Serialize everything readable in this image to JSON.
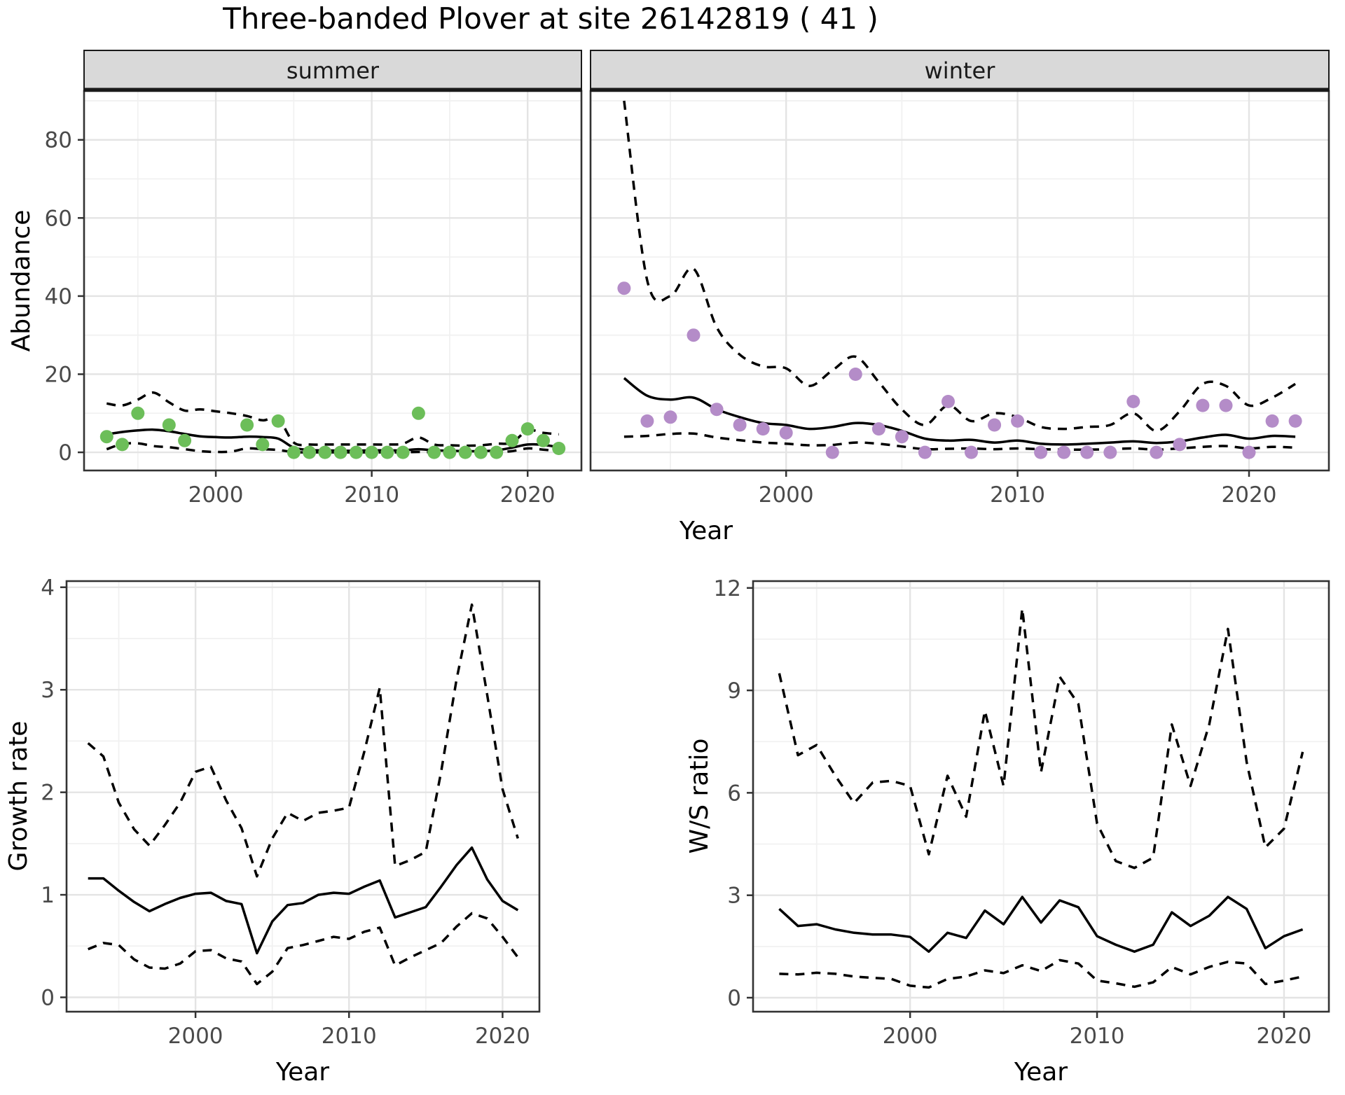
{
  "title": "Three-banded Plover at site 26142819 ( 41 )",
  "colors": {
    "summer_point": "#6cbe59",
    "winter_point": "#b48cc8",
    "line": "#000000",
    "panel_border": "#333333",
    "grid_major": "#e4e4e4",
    "grid_minor": "#f1f1f1",
    "strip_bg": "#d9d9d9",
    "strip_border": "#1a1a1a",
    "tick_text": "#4a4a4a",
    "axis_title": "#000000"
  },
  "chart_data": [
    {
      "type": "line",
      "facet_label": "summer",
      "xlabel": "Year",
      "ylabel": "Abundance",
      "smooth": true,
      "xlim": [
        1991.55,
        2023.45
      ],
      "ylim": [
        -4.65,
        92.5
      ],
      "x_ticks": [
        2000,
        2010,
        2020
      ],
      "x_minor": [
        1995,
        2005,
        2015
      ],
      "y_ticks": [
        0,
        20,
        40,
        60,
        80
      ],
      "y_minor": [
        10,
        30,
        50,
        70,
        90
      ],
      "years": [
        1993,
        1994,
        1995,
        1996,
        1997,
        1998,
        1999,
        2000,
        2001,
        2002,
        2003,
        2004,
        2005,
        2006,
        2007,
        2008,
        2009,
        2010,
        2011,
        2012,
        2013,
        2014,
        2015,
        2016,
        2017,
        2018,
        2019,
        2020,
        2021,
        2022
      ],
      "series": [
        {
          "name": "observed-counts",
          "style": "points",
          "color_key": "summer_point",
          "values": [
            4,
            2,
            10,
            null,
            7,
            3,
            null,
            null,
            null,
            7,
            2,
            8,
            0,
            0,
            0,
            0,
            0,
            0,
            0,
            0,
            10,
            0,
            0,
            0,
            0,
            0,
            3,
            6,
            3,
            1
          ]
        },
        {
          "name": "upper-ci",
          "style": "dashed",
          "values": [
            12.5,
            12.0,
            13.5,
            15.3,
            12.8,
            10.7,
            11.0,
            10.5,
            10.0,
            9.3,
            8.2,
            8.6,
            2.5,
            2.0,
            2.0,
            2.0,
            2.0,
            2.0,
            2.0,
            2.2,
            3.8,
            2.0,
            1.8,
            1.7,
            1.8,
            2.2,
            2.5,
            5.6,
            5.0,
            4.6
          ]
        },
        {
          "name": "lower-ci",
          "style": "dashed",
          "values": [
            0.8,
            2.1,
            2.3,
            1.6,
            1.3,
            0.8,
            0.3,
            0.1,
            0.2,
            1.0,
            0.8,
            0.6,
            0.05,
            0,
            0,
            0,
            0,
            0,
            0,
            0,
            0.1,
            0,
            0,
            0,
            0,
            0.05,
            0.3,
            1.0,
            0.7,
            0.3
          ]
        },
        {
          "name": "model-fit",
          "style": "solid",
          "values": [
            4.6,
            5.2,
            5.6,
            5.8,
            5.4,
            4.7,
            4.1,
            3.9,
            3.8,
            4.0,
            3.9,
            3.5,
            1.2,
            0.6,
            0.5,
            0.4,
            0.4,
            0.5,
            0.5,
            0.5,
            0.8,
            0.5,
            0.4,
            0.3,
            0.3,
            0.5,
            1.2,
            2.0,
            1.9,
            1.3
          ]
        }
      ]
    },
    {
      "type": "line",
      "facet_label": "winter",
      "xlabel": "Year",
      "ylabel": "Abundance",
      "smooth": true,
      "xlim": [
        1991.55,
        2023.45
      ],
      "ylim": [
        -4.65,
        92.5
      ],
      "x_ticks": [
        2000,
        2010,
        2020
      ],
      "x_minor": [
        1995,
        2005,
        2015
      ],
      "y_ticks": [
        0,
        20,
        40,
        60,
        80
      ],
      "y_minor": [
        10,
        30,
        50,
        70,
        90
      ],
      "years": [
        1993,
        1994,
        1995,
        1996,
        1997,
        1998,
        1999,
        2000,
        2001,
        2002,
        2003,
        2004,
        2005,
        2006,
        2007,
        2008,
        2009,
        2010,
        2011,
        2012,
        2013,
        2014,
        2015,
        2016,
        2017,
        2018,
        2019,
        2020,
        2021,
        2022
      ],
      "series": [
        {
          "name": "observed-counts",
          "style": "points",
          "color_key": "winter_point",
          "values": [
            42,
            8,
            9,
            30,
            11,
            7,
            6,
            5,
            null,
            0,
            20,
            6,
            4,
            0,
            13,
            0,
            7,
            8,
            0,
            0,
            0,
            0,
            13,
            0,
            2,
            12,
            12,
            0,
            8,
            8
          ]
        },
        {
          "name": "upper-ci",
          "style": "dashed",
          "values": [
            90,
            44,
            40,
            47,
            32,
            25,
            22,
            21.5,
            17,
            21,
            24.5,
            18,
            11,
            7,
            12,
            8,
            10,
            9,
            6.5,
            6,
            6.5,
            7,
            10,
            5.5,
            10.5,
            17.5,
            17,
            12,
            14,
            17.5
          ]
        },
        {
          "name": "lower-ci",
          "style": "dashed",
          "values": [
            4,
            4.2,
            4.7,
            4.8,
            3.8,
            3.1,
            2.5,
            2.2,
            1.8,
            1.9,
            2.5,
            2.2,
            1.5,
            0.8,
            0.9,
            1.0,
            0.8,
            1.0,
            0.8,
            0.7,
            0.7,
            0.8,
            1.0,
            0.7,
            1.0,
            1.4,
            1.6,
            1.0,
            1.4,
            1.2
          ]
        },
        {
          "name": "model-fit",
          "style": "solid",
          "values": [
            19,
            14.5,
            13.5,
            14,
            11,
            9,
            7.5,
            7,
            6,
            6.5,
            7.5,
            7,
            5.5,
            3.5,
            3,
            3.2,
            2.5,
            3,
            2.2,
            2,
            2.2,
            2.5,
            2.8,
            2.4,
            2.8,
            3.8,
            4.5,
            3.5,
            4.2,
            4.0
          ]
        }
      ]
    },
    {
      "type": "line",
      "facet_label": null,
      "xlabel": "Year",
      "ylabel": "Growth rate",
      "smooth": false,
      "xlim": [
        1991.6,
        2022.4
      ],
      "ylim": [
        -0.14,
        4.06
      ],
      "x_ticks": [
        2000,
        2010,
        2020
      ],
      "x_minor": [
        1995,
        2005,
        2015
      ],
      "y_ticks": [
        0,
        1,
        2,
        3,
        4
      ],
      "y_minor": [
        0.5,
        1.5,
        2.5,
        3.5
      ],
      "years": [
        1993,
        1994,
        1995,
        1996,
        1997,
        1998,
        1999,
        2000,
        2001,
        2002,
        2003,
        2004,
        2005,
        2006,
        2007,
        2008,
        2009,
        2010,
        2011,
        2012,
        2013,
        2014,
        2015,
        2016,
        2017,
        2018,
        2019,
        2020,
        2021
      ],
      "series": [
        {
          "name": "upper-ci",
          "style": "dashed",
          "values": [
            2.48,
            2.35,
            1.9,
            1.64,
            1.48,
            1.68,
            1.9,
            2.2,
            2.25,
            1.92,
            1.65,
            1.18,
            1.55,
            1.8,
            1.72,
            1.8,
            1.82,
            1.85,
            2.4,
            3.02,
            1.28,
            1.34,
            1.42,
            2.2,
            3.1,
            3.83,
            2.95,
            2.03,
            1.55
          ]
        },
        {
          "name": "lower-ci",
          "style": "dashed",
          "values": [
            0.47,
            0.53,
            0.51,
            0.37,
            0.29,
            0.28,
            0.33,
            0.45,
            0.46,
            0.38,
            0.35,
            0.13,
            0.25,
            0.48,
            0.51,
            0.55,
            0.59,
            0.57,
            0.64,
            0.68,
            0.31,
            0.39,
            0.46,
            0.53,
            0.69,
            0.82,
            0.77,
            0.59,
            0.39
          ]
        },
        {
          "name": "model-fit",
          "style": "solid",
          "values": [
            1.16,
            1.16,
            1.04,
            0.93,
            0.84,
            0.91,
            0.97,
            1.01,
            1.02,
            0.94,
            0.91,
            0.43,
            0.74,
            0.9,
            0.92,
            1.0,
            1.02,
            1.01,
            1.08,
            1.14,
            0.78,
            0.83,
            0.88,
            1.08,
            1.29,
            1.46,
            1.15,
            0.94,
            0.85
          ]
        }
      ]
    },
    {
      "type": "line",
      "facet_label": null,
      "xlabel": "Year",
      "ylabel": "W/S ratio",
      "smooth": false,
      "xlim": [
        1991.6,
        2022.4
      ],
      "ylim": [
        -0.41,
        12.2
      ],
      "x_ticks": [
        2000,
        2010,
        2020
      ],
      "x_minor": [
        1995,
        2005,
        2015
      ],
      "y_ticks": [
        0,
        3,
        6,
        9,
        12
      ],
      "y_minor": [
        1.5,
        4.5,
        7.5,
        10.5
      ],
      "years": [
        1993,
        1994,
        1995,
        1996,
        1997,
        1998,
        1999,
        2000,
        2001,
        2002,
        2003,
        2004,
        2005,
        2006,
        2007,
        2008,
        2009,
        2010,
        2011,
        2012,
        2013,
        2014,
        2015,
        2016,
        2017,
        2018,
        2019,
        2020,
        2021
      ],
      "series": [
        {
          "name": "upper-ci",
          "style": "dashed",
          "values": [
            9.5,
            7.1,
            7.4,
            6.5,
            5.7,
            6.3,
            6.35,
            6.2,
            4.2,
            6.5,
            5.3,
            8.4,
            6.2,
            11.4,
            6.6,
            9.4,
            8.6,
            5.1,
            4.0,
            3.8,
            4.1,
            8.0,
            6.2,
            8.0,
            10.8,
            6.9,
            4.4,
            4.95,
            7.2
          ]
        },
        {
          "name": "lower-ci",
          "style": "dashed",
          "values": [
            0.7,
            0.68,
            0.73,
            0.7,
            0.62,
            0.58,
            0.55,
            0.35,
            0.3,
            0.55,
            0.62,
            0.8,
            0.72,
            0.95,
            0.78,
            1.1,
            1.0,
            0.5,
            0.42,
            0.32,
            0.45,
            0.9,
            0.68,
            0.9,
            1.05,
            1.0,
            0.4,
            0.5,
            0.62
          ]
        },
        {
          "name": "model-fit",
          "style": "solid",
          "values": [
            2.6,
            2.1,
            2.15,
            2.0,
            1.9,
            1.85,
            1.85,
            1.78,
            1.35,
            1.9,
            1.75,
            2.55,
            2.15,
            2.95,
            2.2,
            2.85,
            2.65,
            1.8,
            1.55,
            1.35,
            1.55,
            2.5,
            2.1,
            2.4,
            2.95,
            2.6,
            1.45,
            1.8,
            2.0
          ]
        }
      ]
    }
  ]
}
